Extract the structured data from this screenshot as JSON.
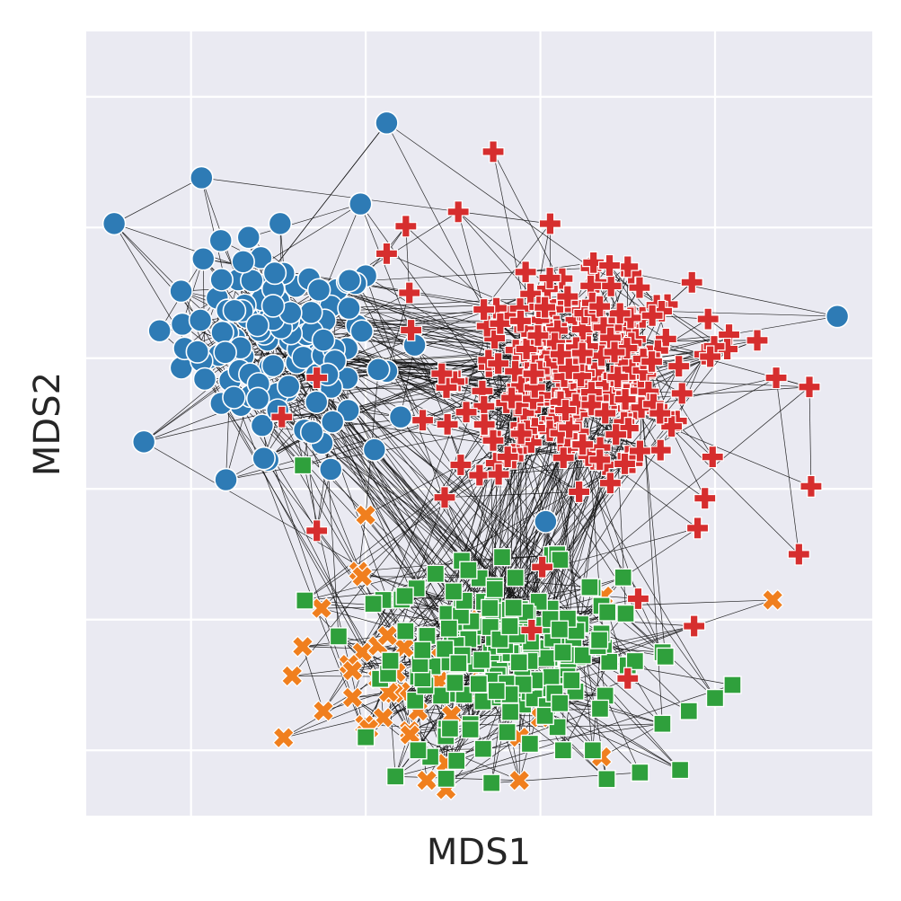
{
  "chart_data": {
    "type": "scatter",
    "xlabel": "MDS1",
    "ylabel": "MDS2",
    "xlim": [
      -1.6,
      2.9
    ],
    "ylim": [
      -2.5,
      3.5
    ],
    "grid": true,
    "x_ticks": [
      -1,
      0,
      1,
      2
    ],
    "y_ticks": [
      -2,
      -1,
      0,
      1,
      2,
      3
    ],
    "background_color": "#eaeaf2",
    "edge_color": "#111111",
    "series": [
      {
        "marker": "circle",
        "color": "#2e7bb5",
        "cluster": {
          "center": [
            -0.5,
            1.1
          ],
          "spread": [
            0.45,
            0.55
          ],
          "count": 130
        },
        "points": [
          [
            0.12,
            2.8
          ],
          [
            -1.44,
            2.03
          ],
          [
            -0.94,
            2.38
          ],
          [
            -0.03,
            2.18
          ],
          [
            -0.49,
            2.03
          ],
          [
            -1.27,
            0.36
          ],
          [
            -0.8,
            0.07
          ],
          [
            -1.05,
            1.26
          ],
          [
            -1.18,
            1.21
          ],
          [
            -0.56,
            0.22
          ],
          [
            -0.83,
            1.9
          ],
          [
            -0.93,
            1.76
          ],
          [
            -0.85,
            1.46
          ],
          [
            0.0,
            1.63
          ],
          [
            2.7,
            1.32
          ],
          [
            1.27,
            0.87
          ],
          [
            1.03,
            -0.25
          ],
          [
            -0.73,
            1.6
          ],
          [
            -0.2,
            0.15
          ],
          [
            -0.1,
            0.6
          ],
          [
            -0.9,
            1.0
          ],
          [
            -0.75,
            1.15
          ],
          [
            -0.62,
            1.35
          ],
          [
            -0.4,
            1.55
          ],
          [
            -0.3,
            1.05
          ],
          [
            -0.15,
            0.85
          ],
          [
            -0.05,
            1.25
          ],
          [
            0.12,
            0.9
          ],
          [
            0.2,
            0.55
          ],
          [
            0.28,
            1.1
          ],
          [
            -0.45,
            0.75
          ],
          [
            -0.35,
            0.45
          ],
          [
            -0.25,
            0.35
          ],
          [
            0.05,
            0.3
          ],
          [
            -0.55,
            1.2
          ]
        ]
      },
      {
        "marker": "x",
        "color": "#f07f1e",
        "cluster": {
          "center": [
            0.1,
            -1.5
          ],
          "spread": [
            0.5,
            0.45
          ],
          "count": 45
        },
        "points": [
          [
            -0.04,
            -0.63
          ],
          [
            -0.02,
            -1.25
          ],
          [
            -0.02,
            -0.67
          ],
          [
            0.07,
            -1.2
          ],
          [
            0.07,
            -1.45
          ],
          [
            0.35,
            -2.23
          ],
          [
            0.42,
            -1.47
          ],
          [
            0.46,
            -2.1
          ],
          [
            0.46,
            -2.3
          ],
          [
            0.66,
            -1.47
          ],
          [
            0.88,
            -1.9
          ],
          [
            0.88,
            -2.23
          ],
          [
            1.0,
            -1.75
          ],
          [
            1.35,
            -2.05
          ],
          [
            1.36,
            -0.82
          ],
          [
            2.33,
            -0.85
          ],
          [
            0.0,
            -0.2
          ],
          [
            0.3,
            -1.7
          ],
          [
            0.5,
            -1.1
          ],
          [
            0.65,
            -1.0
          ],
          [
            0.2,
            -1.55
          ],
          [
            0.25,
            -1.85
          ],
          [
            0.8,
            -1.55
          ],
          [
            0.95,
            -1.3
          ],
          [
            0.1,
            -1.75
          ]
        ]
      },
      {
        "marker": "square",
        "color": "#2fa03c",
        "cluster": {
          "center": [
            0.8,
            -1.2
          ],
          "spread": [
            0.55,
            0.5
          ],
          "count": 210
        },
        "points": [
          [
            -0.36,
            0.18
          ],
          [
            0.1,
            -0.85
          ],
          [
            0.37,
            -2.05
          ],
          [
            0.0,
            -1.9
          ],
          [
            0.77,
            -1.4
          ],
          [
            0.94,
            -1.95
          ],
          [
            1.13,
            -2.0
          ],
          [
            1.3,
            -2.0
          ],
          [
            1.38,
            -2.22
          ],
          [
            1.57,
            -2.17
          ],
          [
            1.8,
            -2.15
          ],
          [
            1.85,
            -1.7
          ],
          [
            2.0,
            -1.6
          ],
          [
            2.1,
            -1.5
          ],
          [
            0.17,
            -2.2
          ],
          [
            0.72,
            -2.25
          ],
          [
            0.52,
            -2.08
          ],
          [
            0.3,
            -2.0
          ],
          [
            0.6,
            -1.8
          ],
          [
            0.9,
            -1.65
          ],
          [
            1.2,
            -1.55
          ],
          [
            1.5,
            -1.35
          ],
          [
            1.7,
            -1.25
          ],
          [
            0.4,
            -0.65
          ],
          [
            0.55,
            -0.55
          ]
        ]
      },
      {
        "marker": "plus",
        "color": "#d62e2e",
        "cluster": {
          "center": [
            1.2,
            0.85
          ],
          "spread": [
            0.55,
            0.6
          ],
          "count": 300
        },
        "points": [
          [
            0.73,
            2.58
          ],
          [
            0.23,
            2.01
          ],
          [
            0.12,
            1.8
          ],
          [
            0.53,
            2.12
          ],
          [
            0.25,
            1.5
          ],
          [
            1.52,
            1.65
          ],
          [
            1.5,
            1.7
          ],
          [
            1.32,
            1.58
          ],
          [
            1.78,
            0.52
          ],
          [
            2.54,
            0.78
          ],
          [
            2.35,
            0.85
          ],
          [
            2.08,
            1.18
          ],
          [
            1.96,
            1.3
          ],
          [
            1.94,
            1.03
          ],
          [
            2.07,
            1.07
          ],
          [
            1.9,
            -0.3
          ],
          [
            2.48,
            -0.5
          ],
          [
            2.55,
            0.02
          ],
          [
            1.56,
            -0.84
          ],
          [
            0.95,
            -1.08
          ],
          [
            1.5,
            -1.45
          ],
          [
            1.88,
            -1.05
          ],
          [
            -0.28,
            -0.32
          ],
          [
            -0.48,
            0.55
          ],
          [
            -0.28,
            0.85
          ]
        ]
      }
    ]
  }
}
